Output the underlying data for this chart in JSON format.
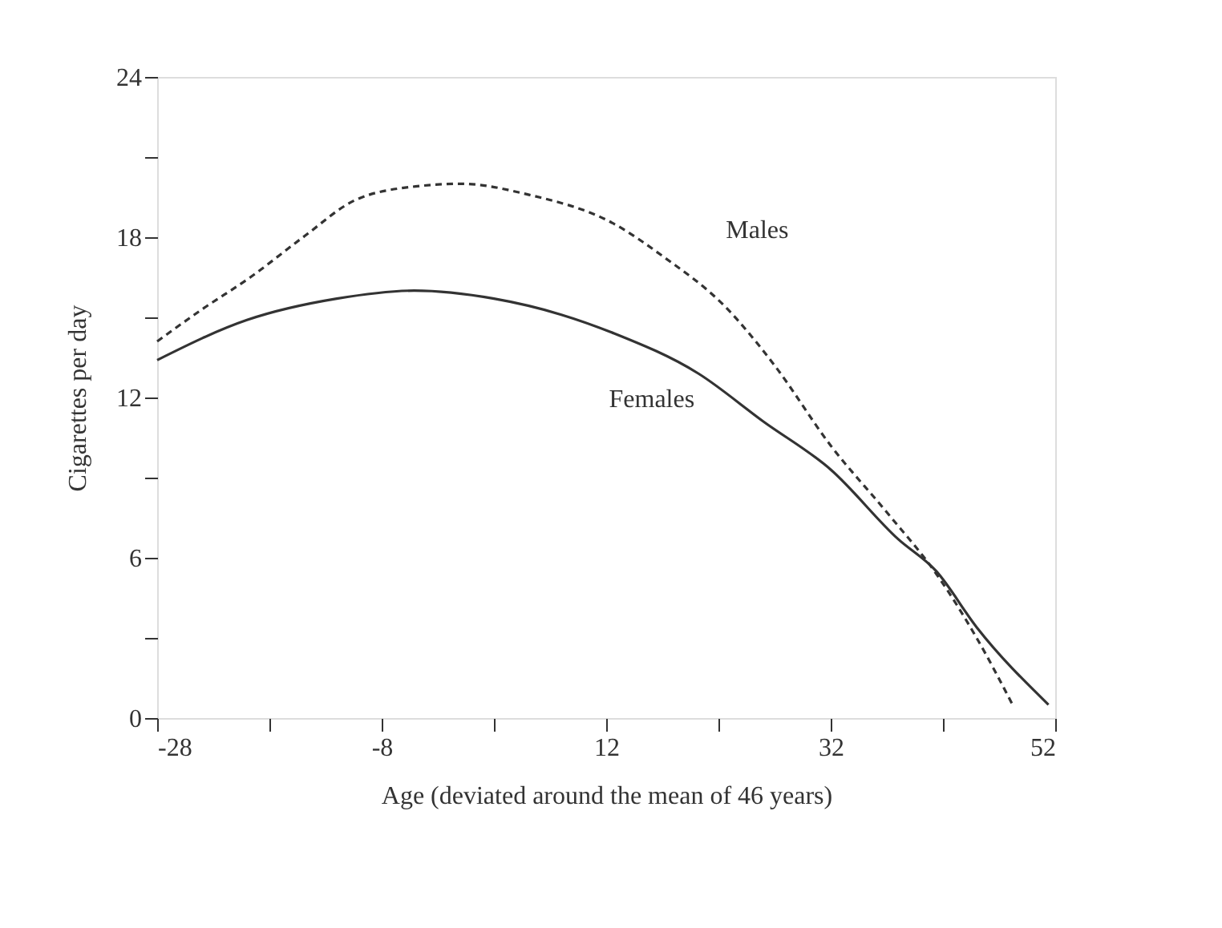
{
  "chart_data": {
    "type": "line",
    "xlabel": "Age (deviated around the mean of 46 years)",
    "ylabel": "Cigarettes per day",
    "xlim": [
      -28,
      52
    ],
    "ylim": [
      0,
      24
    ],
    "xticks": [
      -28,
      {
        "value": -18,
        "label": null
      },
      -8,
      {
        "value": 2,
        "label": null
      },
      12,
      {
        "value": 22,
        "label": null
      },
      32,
      {
        "value": 42,
        "label": null
      },
      52
    ],
    "yticks": [
      0,
      {
        "value": 3,
        "label": null
      },
      6,
      {
        "value": 9,
        "label": null
      },
      12,
      {
        "value": 15,
        "label": null
      },
      18,
      {
        "value": 21,
        "label": null
      },
      24
    ],
    "grid": false,
    "legend": false,
    "marker": "none",
    "series": [
      {
        "name": "Males",
        "color": "#333333",
        "line_style": "dashed",
        "x": [
          -28,
          -24,
          -19.7,
          -15,
          -10.3,
          -5,
          -0.9,
          5,
          12.7,
          17,
          22.6,
          27,
          32.0,
          37,
          41.4,
          45,
          48.2
        ],
        "values": [
          14.1,
          15.3,
          16.5,
          18.0,
          19.4,
          19.9,
          20.0,
          19.6,
          18.5,
          17.3,
          15.4,
          13.2,
          10.2,
          7.7,
          5.4,
          3.0,
          0.5
        ]
      },
      {
        "name": "Females",
        "color": "#333333",
        "line_style": "solid",
        "x": [
          -28,
          -20,
          -12,
          -5.1,
          2,
          8,
          12.7,
          20.2,
          26,
          32.0,
          38,
          41.4,
          45,
          51.4
        ],
        "values": [
          13.4,
          14.9,
          15.7,
          16.0,
          15.7,
          15.1,
          14.4,
          12.9,
          11.1,
          9.3,
          6.7,
          5.5,
          3.4,
          0.5
        ]
      }
    ]
  }
}
